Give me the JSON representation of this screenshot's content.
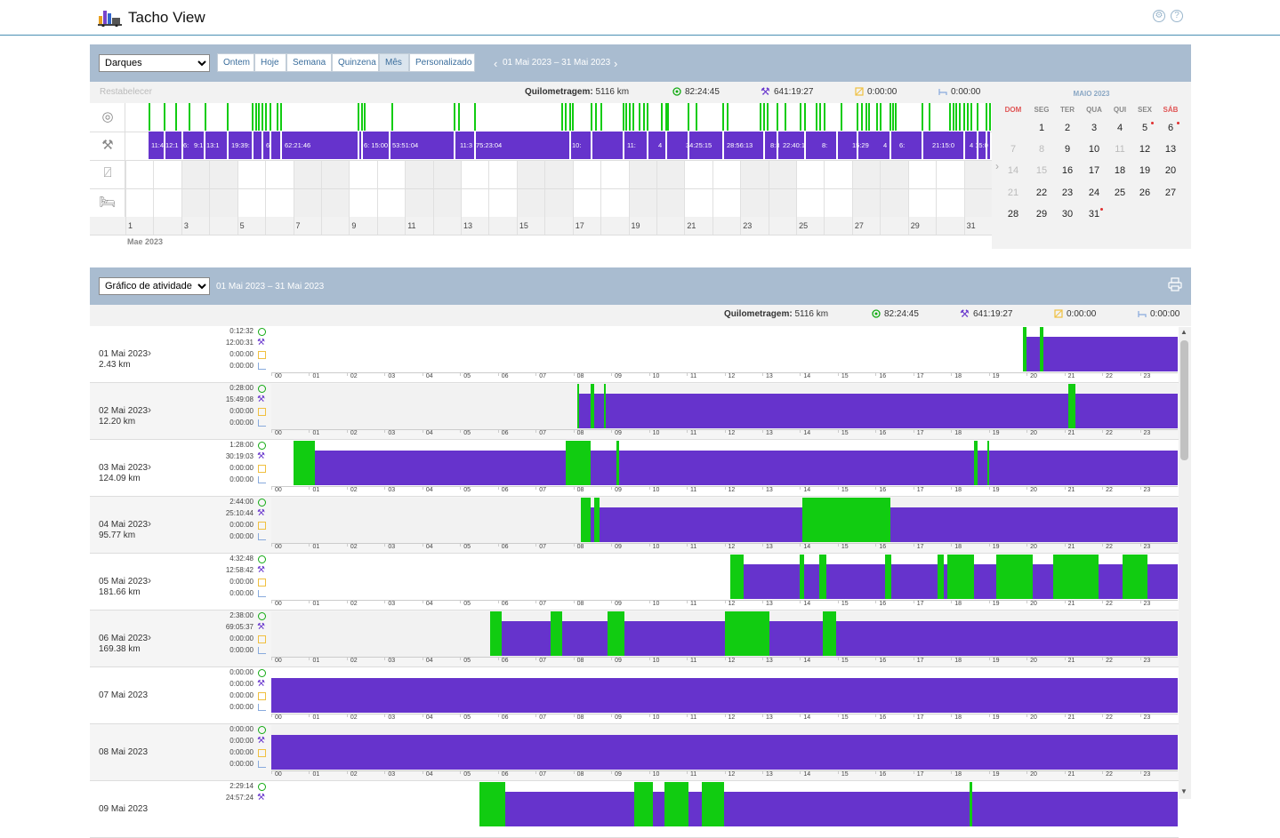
{
  "app": {
    "title": "Tacho View"
  },
  "colors": {
    "driving": "#11cc11",
    "work": "#6633cc",
    "header": "#a9bcd0",
    "grid": "#e5e5e5"
  },
  "panel1": {
    "driver_select": "Darques",
    "ranges": [
      "Ontem",
      "Hoje",
      "Semana",
      "Quinzena",
      "Mês",
      "Personalizado"
    ],
    "active_range": "Mês",
    "period": "01 Mai 2023  –  31 Mai 2023",
    "reset": "Restabelecer",
    "km_label": "Quilometragem:",
    "km_value": "5116 km",
    "driving_total": "82:24:45",
    "work_total": "641:19:27",
    "available_total": "0:00:00",
    "rest_total": "0:00:00",
    "day_ticks": [
      "1",
      "3",
      "5",
      "7",
      "9",
      "11",
      "13",
      "15",
      "17",
      "19",
      "21",
      "23",
      "25",
      "27",
      "29",
      "31"
    ],
    "month_label": "Mae 2023",
    "work_labels": [
      "11:4",
      "12:1",
      "6:",
      "9:1",
      "13:1",
      "19:39:",
      "6:",
      "62:21:46",
      "6: 15:00",
      "53:51:04",
      "11:3",
      "75:23:04",
      "10:",
      "11:",
      "4",
      "34:25:15",
      "28:56:13",
      "8:3",
      "22:40:1",
      "8:",
      "15:29",
      "4",
      "6:",
      "21:15:0",
      "4 15:0",
      "8:"
    ]
  },
  "calendar": {
    "month": "MAIO 2023",
    "weekdays": [
      "DOM",
      "SEG",
      "TER",
      "QUA",
      "QUI",
      "SEX",
      "SÁB"
    ],
    "weeks": [
      [
        "",
        "1",
        "2",
        "3",
        "4",
        "5",
        "6"
      ],
      [
        "7",
        "8",
        "9",
        "10",
        "11",
        "12",
        "13"
      ],
      [
        "14",
        "15",
        "16",
        "17",
        "18",
        "19",
        "20"
      ],
      [
        "21",
        "22",
        "23",
        "24",
        "25",
        "26",
        "27"
      ],
      [
        "28",
        "29",
        "30",
        "31",
        "",
        "",
        ""
      ]
    ]
  },
  "panel2": {
    "chart_select": "Gráfico de atividade",
    "period": "01 Mai 2023  –  31 Mai 2023",
    "km_label": "Quilometragem:",
    "km_value": "5116 km",
    "driving_total": "82:24:45",
    "work_total": "641:19:27",
    "available_total": "0:00:00",
    "rest_total": "0:00:00",
    "hours": [
      "00",
      "01",
      "02",
      "03",
      "04",
      "05",
      "06",
      "07",
      "08",
      "09",
      "10",
      "11",
      "12",
      "13",
      "14",
      "15",
      "16",
      "17",
      "18",
      "19",
      "20",
      "21",
      "22",
      "23"
    ]
  },
  "days": [
    {
      "date": "01 Mai 2023",
      "km": "2.43 km",
      "driving": "0:12:32",
      "work": "12:00:31",
      "available": "0:00:00",
      "rest": "0:00:00",
      "work_span": [
        20.0,
        24
      ],
      "drive": [
        [
          19.9,
          20.0
        ],
        [
          20.35,
          20.45
        ]
      ]
    },
    {
      "date": "02 Mai 2023",
      "km": "12.20 km",
      "driving": "0:28:00",
      "work": "15:49:08",
      "available": "0:00:00",
      "rest": "0:00:00",
      "work_span": [
        8.1,
        24
      ],
      "drive": [
        [
          8.1,
          8.15
        ],
        [
          8.45,
          8.55
        ],
        [
          8.8,
          8.85
        ],
        [
          21.1,
          21.3
        ]
      ]
    },
    {
      "date": "03 Mai 2023",
      "km": "124.09 km",
      "driving": "1:28:00",
      "work": "30:19:03",
      "available": "0:00:00",
      "rest": "0:00:00",
      "work_span": [
        0.6,
        24
      ],
      "drive": [
        [
          0.6,
          1.15
        ],
        [
          7.8,
          8.45
        ],
        [
          9.15,
          9.2
        ],
        [
          18.6,
          18.7
        ],
        [
          18.95,
          19.0
        ]
      ]
    },
    {
      "date": "04 Mai 2023",
      "km": "95.77 km",
      "driving": "2:44:00",
      "work": "25:10:44",
      "available": "0:00:00",
      "rest": "0:00:00",
      "work_span": [
        8.2,
        24
      ],
      "drive": [
        [
          8.2,
          8.45
        ],
        [
          8.55,
          8.68
        ],
        [
          14.05,
          16.4
        ]
      ]
    },
    {
      "date": "05 Mai 2023",
      "km": "181.66 km",
      "driving": "4:32:48",
      "work": "12:58:42",
      "available": "0:00:00",
      "rest": "0:00:00",
      "work_span": [
        12.15,
        24
      ],
      "drive": [
        [
          12.15,
          12.5
        ],
        [
          14.0,
          14.1
        ],
        [
          14.5,
          14.7
        ],
        [
          16.25,
          16.42
        ],
        [
          17.65,
          17.8
        ],
        [
          17.9,
          18.6
        ],
        [
          19.2,
          20.15
        ],
        [
          20.7,
          21.9
        ],
        [
          22.55,
          23.2
        ]
      ]
    },
    {
      "date": "06 Mai 2023",
      "km": "169.38 km",
      "driving": "2:38:00",
      "work": "69:05:37",
      "available": "0:00:00",
      "rest": "0:00:00",
      "work_span": [
        5.8,
        24
      ],
      "drive": [
        [
          5.8,
          6.1
        ],
        [
          7.4,
          7.7
        ],
        [
          8.9,
          9.35
        ],
        [
          12.0,
          13.2
        ],
        [
          14.6,
          14.95
        ]
      ]
    },
    {
      "date": "07 Mai 2023",
      "km": "",
      "driving": "0:00:00",
      "work": "0:00:00",
      "available": "0:00:00",
      "rest": "0:00:00",
      "work_span": [
        0,
        24
      ],
      "drive": []
    },
    {
      "date": "08 Mai 2023",
      "km": "",
      "driving": "0:00:00",
      "work": "0:00:00",
      "available": "0:00:00",
      "rest": "0:00:00",
      "work_span": [
        0,
        24
      ],
      "drive": []
    },
    {
      "date": "09 Mai 2023",
      "km": "",
      "driving": "2:29:14",
      "work": "24:57:24",
      "available": "",
      "rest": "",
      "work_span": [
        5.5,
        24
      ],
      "drive": [
        [
          5.5,
          6.2
        ],
        [
          9.6,
          10.1
        ],
        [
          10.4,
          11.05
        ],
        [
          11.4,
          12.0
        ],
        [
          18.5,
          18.55
        ]
      ]
    }
  ]
}
